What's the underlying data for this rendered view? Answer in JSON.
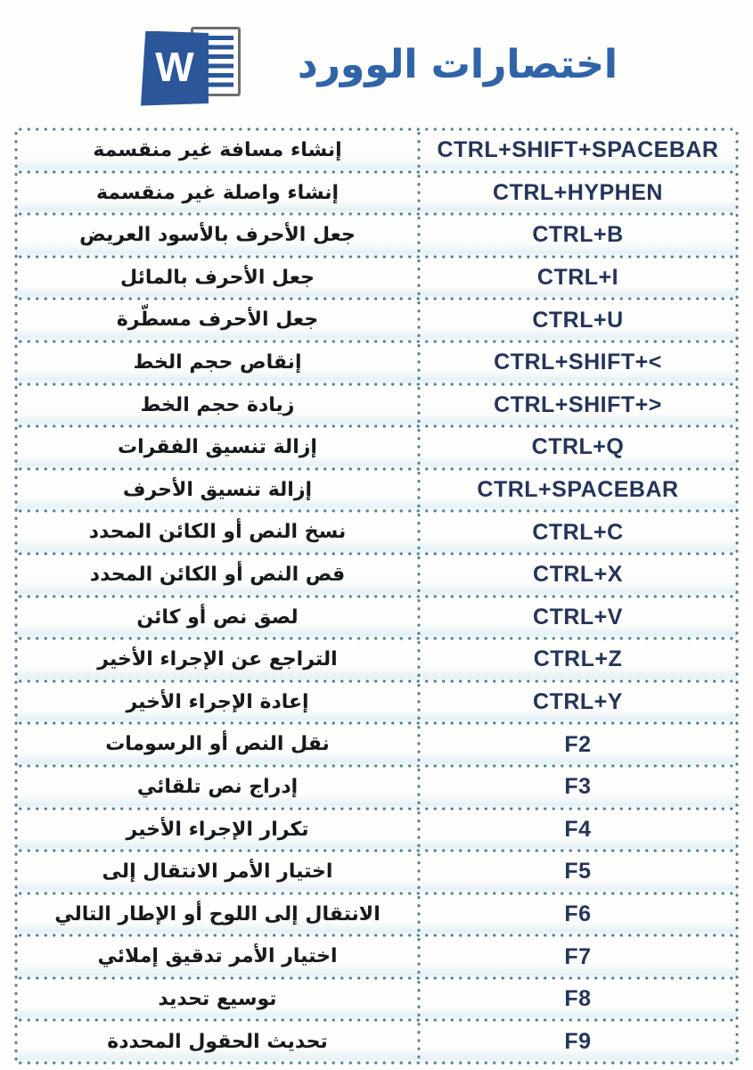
{
  "header": {
    "title": "اختصارات الوورد",
    "title_color": "#2f64a7",
    "logo": {
      "name": "microsoft-word-logo",
      "letter": "W",
      "brand_color": "#2b579a"
    }
  },
  "table": {
    "dotted_border_color": "#4e7e8a",
    "description_text_color": "#17191d",
    "shortcut_text_color": "#25345a",
    "columns": [
      "description",
      "shortcut"
    ],
    "rows": [
      {
        "desc": "إنشاء مسافة غير منقسمة",
        "shortcut": "CTRL+SHIFT+SPACEBAR"
      },
      {
        "desc": "إنشاء واصلة غير منقسمة",
        "shortcut": "CTRL+HYPHEN"
      },
      {
        "desc": "جعل الأحرف بالأسود العريض",
        "shortcut": "CTRL+B"
      },
      {
        "desc": "جعل الأحرف بالمائل",
        "shortcut": "CTRL+I"
      },
      {
        "desc": "جعل الأحرف مسطّرة",
        "shortcut": "CTRL+U"
      },
      {
        "desc": "إنقاص حجم الخط",
        "shortcut": "CTRL+SHIFT+<"
      },
      {
        "desc": "زيادة حجم الخط",
        "shortcut": "CTRL+SHIFT+>"
      },
      {
        "desc": "إزالة تنسيق الفقرات",
        "shortcut": "CTRL+Q"
      },
      {
        "desc": "إزالة تنسيق الأحرف",
        "shortcut": "CTRL+SPACEBAR"
      },
      {
        "desc": "نسخ النص أو الكائن المحدد",
        "shortcut": "CTRL+C"
      },
      {
        "desc": "قص النص أو الكائن المحدد",
        "shortcut": "CTRL+X"
      },
      {
        "desc": "لصق نص أو كائن",
        "shortcut": "CTRL+V"
      },
      {
        "desc": "التراجع عن الإجراء الأخير",
        "shortcut": "CTRL+Z"
      },
      {
        "desc": "إعادة الإجراء الأخير",
        "shortcut": "CTRL+Y"
      },
      {
        "desc": "نقل النص أو الرسومات",
        "shortcut": "F2"
      },
      {
        "desc": "إدراج نص تلقائي",
        "shortcut": "F3"
      },
      {
        "desc": "تكرار الإجراء الأخير",
        "shortcut": "F4"
      },
      {
        "desc": "اختيار الأمر الانتقال إلى",
        "shortcut": "F5"
      },
      {
        "desc": "الانتقال إلى اللوح أو الإطار التالي",
        "shortcut": "F6"
      },
      {
        "desc": "اختيار الأمر تدقيق إملائي",
        "shortcut": "F7"
      },
      {
        "desc": "توسيع تحديد",
        "shortcut": "F8"
      },
      {
        "desc": "تحديث الحقول المحددة",
        "shortcut": "F9"
      }
    ]
  }
}
